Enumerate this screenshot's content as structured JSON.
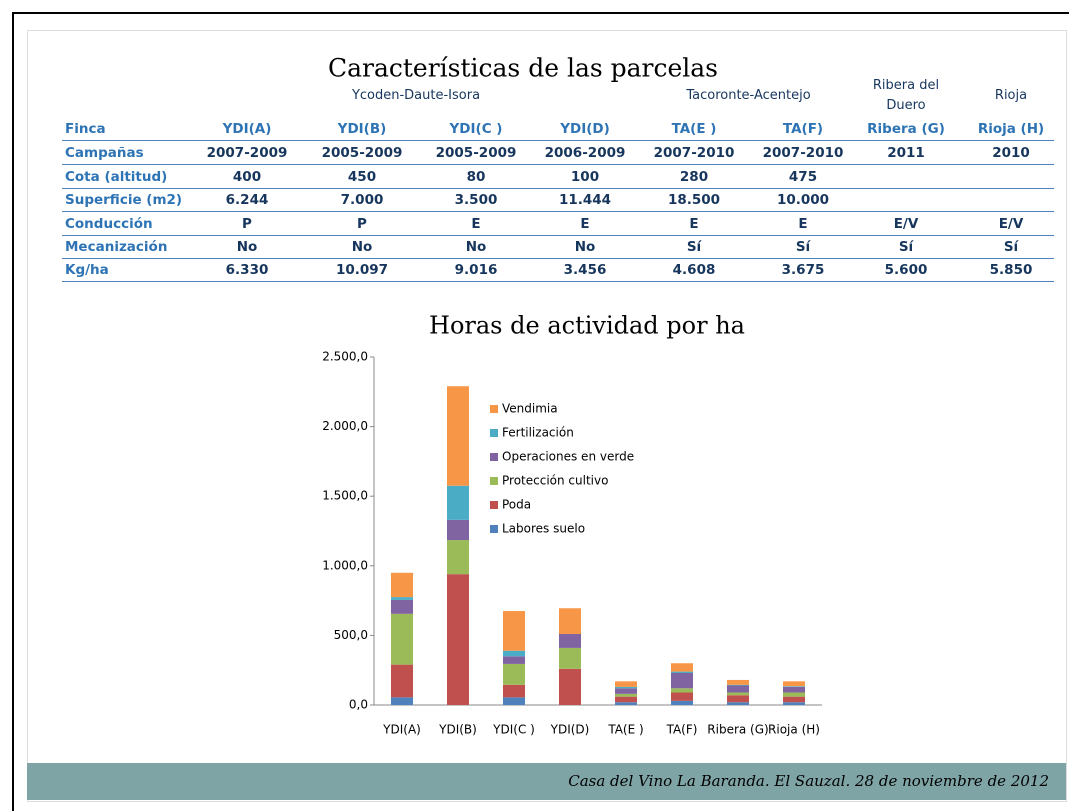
{
  "header": {
    "title": "Características de las parcelas"
  },
  "table": {
    "group_headers": [
      {
        "label": "Ycoden-Daute-Isora",
        "from": 1,
        "to": 4
      },
      {
        "label": "Tacoronte-Acentejo",
        "from": 5,
        "to": 6
      },
      {
        "label": "Ribera del Duero",
        "from": 7,
        "to": 7
      },
      {
        "label": "Rioja",
        "from": 8,
        "to": 8
      }
    ],
    "columns": [
      "Finca",
      "YDI(A)",
      "YDI(B)",
      "YDI(C )",
      "YDI(D)",
      "TA(E )",
      "TA(F)",
      "Ribera (G)",
      "Rioja (H)"
    ],
    "rows": [
      [
        "Campañas",
        "2007-2009",
        "2005-2009",
        "2005-2009",
        "2006-2009",
        "2007-2010",
        "2007-2010",
        "2011",
        "2010"
      ],
      [
        "Cota (altitud)",
        "400",
        "450",
        "80",
        "100",
        "280",
        "475"
      ],
      [
        "Superficie (m2)",
        "6.244",
        "7.000",
        "3.500",
        "11.444",
        "18.500",
        "10.000"
      ],
      [
        "Conducción",
        "P",
        "P",
        "E",
        "E",
        "E",
        "E",
        "E/V",
        "E/V"
      ],
      [
        "Mecanización",
        "No",
        "No",
        "No",
        "No",
        "Sí",
        "Sí",
        "Sí",
        "Sí"
      ],
      [
        "Kg/ha",
        "6.330",
        "10.097",
        "9.016",
        "3.456",
        "4.608",
        "3.675",
        "5.600",
        "5.850"
      ]
    ]
  },
  "chart_data": {
    "type": "stacked_bar",
    "title": "Horas de actividad por ha",
    "categories": [
      "YDI(A)",
      "YDI(B)",
      "YDI(C )",
      "YDI(D)",
      "TA(E )",
      "TA(F)",
      "Ribera (G)",
      "Rioja (H)"
    ],
    "series": [
      {
        "name": "Labores suelo",
        "color": "#4f81bd",
        "values": [
          55,
          0,
          55,
          0,
          20,
          30,
          20,
          20
        ]
      },
      {
        "name": "Poda",
        "color": "#c0504d",
        "values": [
          235,
          940,
          90,
          260,
          40,
          60,
          50,
          40
        ]
      },
      {
        "name": "Protección cultivo",
        "color": "#9bbb59",
        "values": [
          365,
          245,
          150,
          150,
          20,
          30,
          20,
          30
        ]
      },
      {
        "name": "Operaciones en verde",
        "color": "#8064a2",
        "values": [
          100,
          145,
          55,
          100,
          40,
          110,
          50,
          40
        ]
      },
      {
        "name": "Fertilización",
        "color": "#4bacc6",
        "values": [
          20,
          245,
          40,
          0,
          10,
          10,
          5,
          5
        ]
      },
      {
        "name": "Vendimia",
        "color": "#f79646",
        "values": [
          175,
          715,
          285,
          185,
          40,
          60,
          35,
          35
        ]
      }
    ],
    "ylim": [
      0,
      2500
    ],
    "yticks": [
      {
        "value": 0,
        "label": "0,0"
      },
      {
        "value": 500,
        "label": "500,0"
      },
      {
        "value": 1000,
        "label": "1.000,0"
      },
      {
        "value": 1500,
        "label": "1.500,0"
      },
      {
        "value": 2000,
        "label": "2.000,0"
      },
      {
        "value": 2500,
        "label": "2.500,0"
      }
    ]
  },
  "footer": {
    "text": "Casa del Vino La Baranda.  El Sauzal. 28 de noviembre de 2012"
  }
}
